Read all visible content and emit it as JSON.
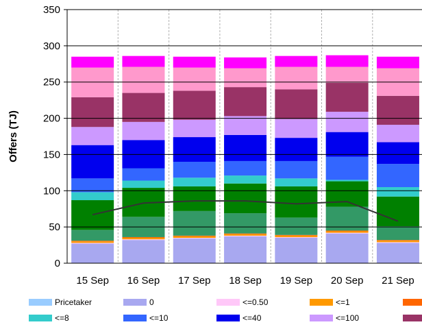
{
  "chart_data": {
    "type": "bar",
    "stacked": true,
    "ylabel": "Offers (TJ)",
    "ylim": [
      0,
      350
    ],
    "yticks": [
      0,
      50,
      100,
      150,
      200,
      250,
      300,
      350
    ],
    "categories": [
      "15 Sep",
      "16 Sep",
      "17 Sep",
      "18 Sep",
      "19 Sep",
      "20 Sep",
      "21 Sep"
    ],
    "grid": {
      "horizontal": true,
      "vertical": "dashed"
    },
    "legend_position": "bottom",
    "series": [
      {
        "name": "Pricetaker",
        "color": "#99ccff",
        "values": [
          0,
          0,
          0,
          0,
          0,
          0,
          0
        ],
        "in_legend": true
      },
      {
        "name": "0",
        "color": "#a8a8f0",
        "values": [
          27,
          32,
          34,
          37,
          35,
          41,
          28
        ],
        "in_legend": true
      },
      {
        "name": "<=0.50",
        "color": "#ffc8f8",
        "values": [
          1,
          1,
          1,
          1,
          1,
          1,
          1
        ],
        "in_legend": true
      },
      {
        "name": "<=1",
        "color": "#ff9900",
        "values": [
          2,
          2,
          2,
          2,
          2,
          2,
          2
        ],
        "in_legend": true
      },
      {
        "name": "",
        "color": "#ff6600",
        "values": [
          1,
          1,
          1,
          1,
          1,
          1,
          1
        ],
        "in_legend": true
      },
      {
        "name": "",
        "color": "#339966",
        "values": [
          15,
          28,
          34,
          28,
          24,
          33,
          19
        ],
        "in_legend": false
      },
      {
        "name": "",
        "color": "#008000",
        "values": [
          41,
          40,
          34,
          41,
          43,
          35,
          41
        ],
        "in_legend": false
      },
      {
        "name": "<=8",
        "color": "#33cccc",
        "values": [
          11,
          10,
          12,
          11,
          11,
          2,
          13
        ],
        "in_legend": true
      },
      {
        "name": "<=10",
        "color": "#3366ff",
        "values": [
          19,
          17,
          22,
          20,
          24,
          32,
          32
        ],
        "in_legend": true
      },
      {
        "name": "<=40",
        "color": "#0000ee",
        "values": [
          46,
          39,
          34,
          36,
          32,
          34,
          30
        ],
        "in_legend": true
      },
      {
        "name": "<=100",
        "color": "#cc99ff",
        "values": [
          25,
          25,
          24,
          26,
          26,
          28,
          24
        ],
        "in_legend": true
      },
      {
        "name": "",
        "color": "#993366",
        "values": [
          41,
          40,
          40,
          40,
          41,
          40,
          40
        ],
        "in_legend": true
      },
      {
        "name": "",
        "color": "#ff99cc",
        "values": [
          41,
          36,
          32,
          26,
          31,
          22,
          38
        ],
        "in_legend": false
      },
      {
        "name": "",
        "color": "#ff00ff",
        "values": [
          15,
          15,
          15,
          15,
          15,
          16,
          16
        ],
        "in_legend": false
      }
    ],
    "line": {
      "color": "#333333",
      "values": [
        67,
        83,
        86,
        86,
        82,
        85,
        58
      ]
    }
  }
}
